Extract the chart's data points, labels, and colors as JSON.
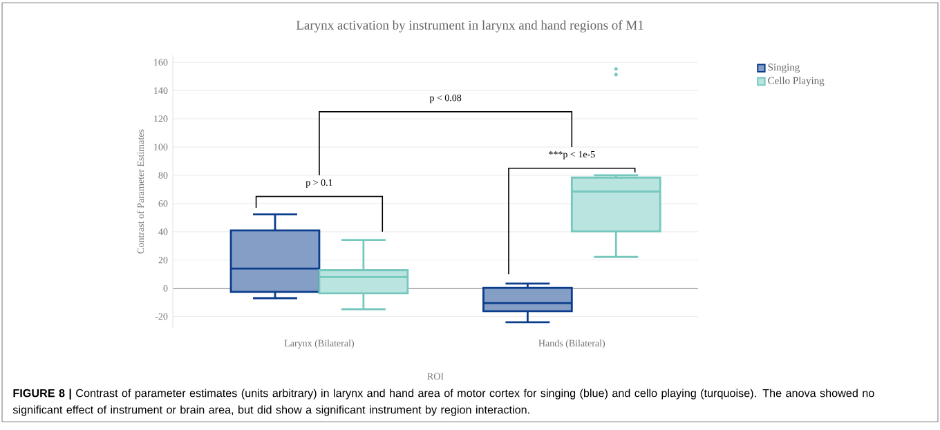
{
  "chart_data": {
    "type": "box",
    "title": "Larynx activation by instrument in larynx and hand regions of M1",
    "xlabel": "ROI",
    "ylabel": "Contrast of Parameter Estimates",
    "categories": [
      "Larynx (Bilateral)",
      "Hands (Bilateral)"
    ],
    "series": [
      {
        "name": "Singing",
        "color": "#0b3d8c",
        "boxes": [
          {
            "low": -7,
            "q1": -2.5,
            "median": 14,
            "q3": 41,
            "high": 52.3
          },
          {
            "low": -24,
            "q1": -16.2,
            "median": -10.5,
            "q3": 0.3,
            "high": 3.3
          }
        ]
      },
      {
        "name": "Cello Playing",
        "color": "#76c8bf",
        "boxes": [
          {
            "low": -14.8,
            "q1": -3.5,
            "median": 8,
            "q3": 12.8,
            "high": 34.2
          },
          {
            "low": 22.2,
            "q1": 40.3,
            "median": 68.5,
            "q3": 78.4,
            "high": 80,
            "outliers": [
              155.3,
              151.3
            ]
          }
        ]
      }
    ],
    "ylim": [
      -28,
      165
    ],
    "yticks": [
      -20,
      0,
      20,
      40,
      60,
      80,
      100,
      120,
      140,
      160
    ],
    "grid": "y",
    "legend": "top right",
    "ref_lines": [
      {
        "axis": "y",
        "value": 0,
        "color": "#8c8c8c"
      }
    ],
    "annotations": [
      "p > 0.1",
      "p < 0.08",
      "***p < 1e-5",
      "**FIGURE 8 |** Contrast of parameter estimates (units arbitrary) in larynx and hand area of motor cortex for singing (blue) and cello playing (turquoise). The anova showed no significant effect of instrument or brain area, but did show a significant instrument by region interaction."
    ]
  }
}
